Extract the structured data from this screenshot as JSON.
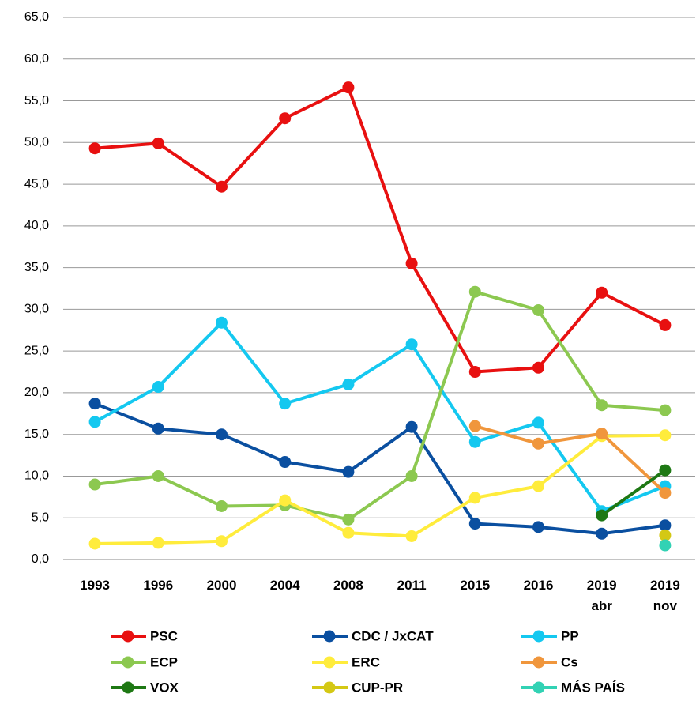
{
  "chart_data": {
    "type": "line",
    "categories": [
      "1993",
      "1996",
      "2000",
      "2004",
      "2008",
      "2011",
      "2015",
      "2016",
      "2019 abr",
      "2019 nov"
    ],
    "ylim": [
      0,
      65
    ],
    "yticks": [
      {
        "value": 0,
        "label": "0,0"
      },
      {
        "value": 5,
        "label": "5,0"
      },
      {
        "value": 10,
        "label": "10,0"
      },
      {
        "value": 15,
        "label": "15,0"
      },
      {
        "value": 20,
        "label": "20,0"
      },
      {
        "value": 25,
        "label": "25,0"
      },
      {
        "value": 30,
        "label": "30,0"
      },
      {
        "value": 35,
        "label": "35,0"
      },
      {
        "value": 40,
        "label": "40,0"
      },
      {
        "value": 45,
        "label": "45,0"
      },
      {
        "value": 50,
        "label": "50,0"
      },
      {
        "value": 55,
        "label": "55,0"
      },
      {
        "value": 60,
        "label": "60,0"
      },
      {
        "value": 65,
        "label": "65,0"
      }
    ],
    "grid": true,
    "series": [
      {
        "name": "PSC",
        "color": "#e81010",
        "values": [
          49.3,
          49.9,
          44.7,
          52.9,
          56.6,
          35.5,
          22.5,
          23.0,
          32.0,
          28.1
        ]
      },
      {
        "name": "CDC / JxCAT",
        "color": "#0a4fa0",
        "values": [
          18.7,
          15.7,
          15.0,
          11.7,
          10.5,
          15.9,
          4.3,
          3.9,
          3.1,
          4.1
        ]
      },
      {
        "name": "PP",
        "color": "#14c8f0",
        "values": [
          16.5,
          20.7,
          28.4,
          18.7,
          21.0,
          25.8,
          14.1,
          16.4,
          5.8,
          8.8
        ]
      },
      {
        "name": "ECP",
        "color": "#8cc850",
        "values": [
          9.0,
          10.0,
          6.4,
          6.5,
          4.8,
          10.0,
          32.1,
          29.9,
          18.5,
          17.9
        ]
      },
      {
        "name": "ERC",
        "color": "#ffec3c",
        "values": [
          1.9,
          2.0,
          2.2,
          7.1,
          3.2,
          2.8,
          7.4,
          8.8,
          14.8,
          14.9
        ]
      },
      {
        "name": "Cs",
        "color": "#f0963c",
        "values": [
          null,
          null,
          null,
          null,
          null,
          null,
          16.0,
          13.9,
          15.1,
          8.0
        ]
      },
      {
        "name": "VOX",
        "color": "#1e7814",
        "values": [
          null,
          null,
          null,
          null,
          null,
          null,
          null,
          null,
          5.3,
          10.7
        ]
      },
      {
        "name": "CUP-PR",
        "color": "#d4c814",
        "values": [
          null,
          null,
          null,
          null,
          null,
          null,
          null,
          null,
          null,
          2.9
        ]
      },
      {
        "name": "MÁS PAÍS",
        "color": "#32d2b4",
        "values": [
          null,
          null,
          null,
          null,
          null,
          null,
          null,
          null,
          null,
          1.7
        ]
      }
    ]
  }
}
